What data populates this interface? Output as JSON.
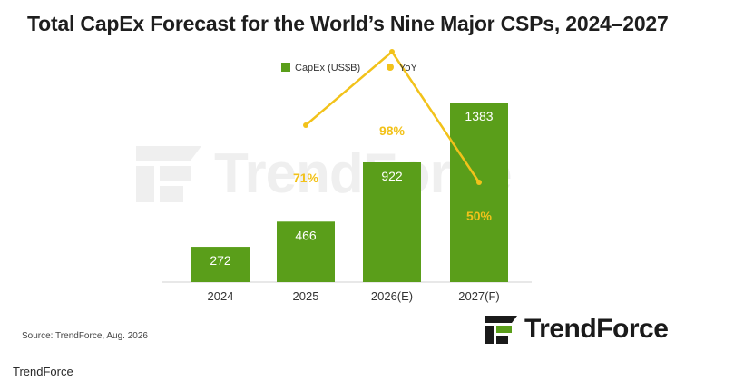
{
  "chart_data": {
    "type": "bar",
    "title": "Total CapEx Forecast for the World’s Nine Major CSPs, 2024–2027",
    "categories": [
      "2024",
      "2025",
      "2026(E)",
      "2027(F)"
    ],
    "series": [
      {
        "name": "CapEx (US$B)",
        "type": "bar",
        "values": [
          272,
          466,
          922,
          1383
        ],
        "color": "#5a9e1a",
        "labels": [
          "272",
          "466",
          "922",
          "1383"
        ]
      },
      {
        "name": "YoY",
        "type": "line",
        "values": [
          null,
          71,
          98,
          50
        ],
        "color": "#f2c21a",
        "labels": [
          "",
          "71%",
          "98%",
          "50%"
        ]
      }
    ],
    "legend_position": "top-center",
    "grid": false
  },
  "source": "Source: TrendForce, Aug. 2026",
  "brand": {
    "name": "TrendForce",
    "logo_icon": "trendforce-logo-icon"
  },
  "caption": "TrendForce",
  "colors": {
    "bar": "#5a9e1a",
    "line": "#f2c21a",
    "bar_label": "#ffffff",
    "line_label": "#f2c21a"
  }
}
